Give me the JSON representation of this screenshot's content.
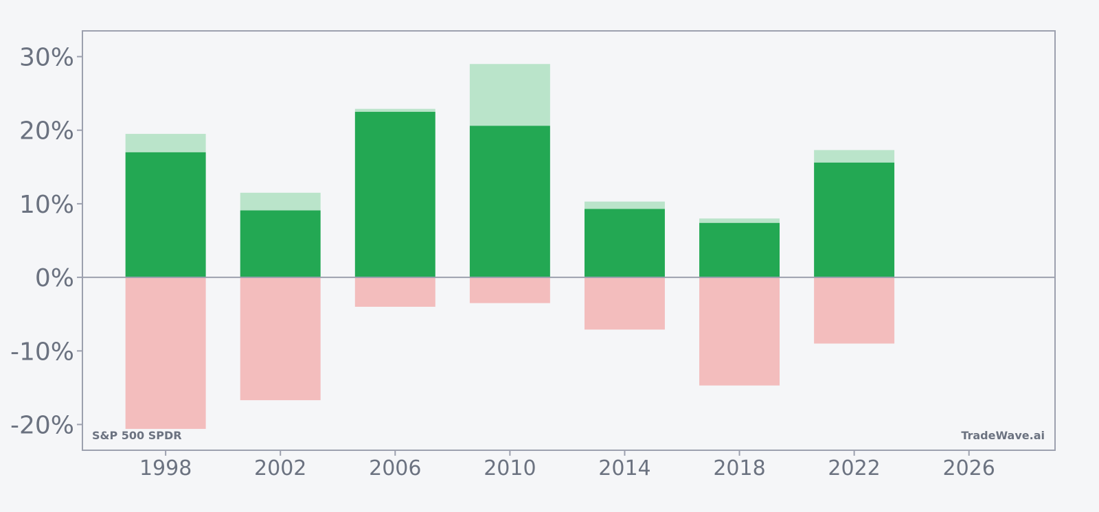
{
  "chart_data": {
    "type": "bar",
    "title": "",
    "xlabel": "",
    "ylabel": "",
    "x_ticks": [
      1998,
      2002,
      2006,
      2010,
      2014,
      2018,
      2022,
      2026
    ],
    "y_ticks": [
      30,
      20,
      10,
      0,
      -10,
      -20
    ],
    "y_tick_labels": [
      "30%",
      "20%",
      "10%",
      "0%",
      "-10%",
      "-20%"
    ],
    "xlim": [
      1995.1,
      2029.0
    ],
    "ylim": [
      -23.5,
      33.5
    ],
    "grid": false,
    "legend": "none",
    "bars": [
      {
        "x": 1998,
        "value": 17.0,
        "high": 19.5,
        "low": -20.6
      },
      {
        "x": 2002,
        "value": 9.1,
        "high": 11.5,
        "low": -16.7
      },
      {
        "x": 2006,
        "value": 22.5,
        "high": 22.9,
        "low": -4.0
      },
      {
        "x": 2010,
        "value": 20.6,
        "high": 29.0,
        "low": -3.5
      },
      {
        "x": 2014,
        "value": 9.3,
        "high": 10.3,
        "low": -7.1
      },
      {
        "x": 2018,
        "value": 7.4,
        "high": 8.0,
        "low": -14.7
      },
      {
        "x": 2022,
        "value": 15.6,
        "high": 17.3,
        "low": -9.0
      }
    ],
    "colors": {
      "value": "#23a853",
      "high": "#bae4ca",
      "low": "#f3bdbd",
      "axis": "#9ca0ae",
      "text": "#6b7280"
    }
  },
  "labels": {
    "instrument": "S&P 500 SPDR",
    "brand": "TradeWave.ai"
  }
}
